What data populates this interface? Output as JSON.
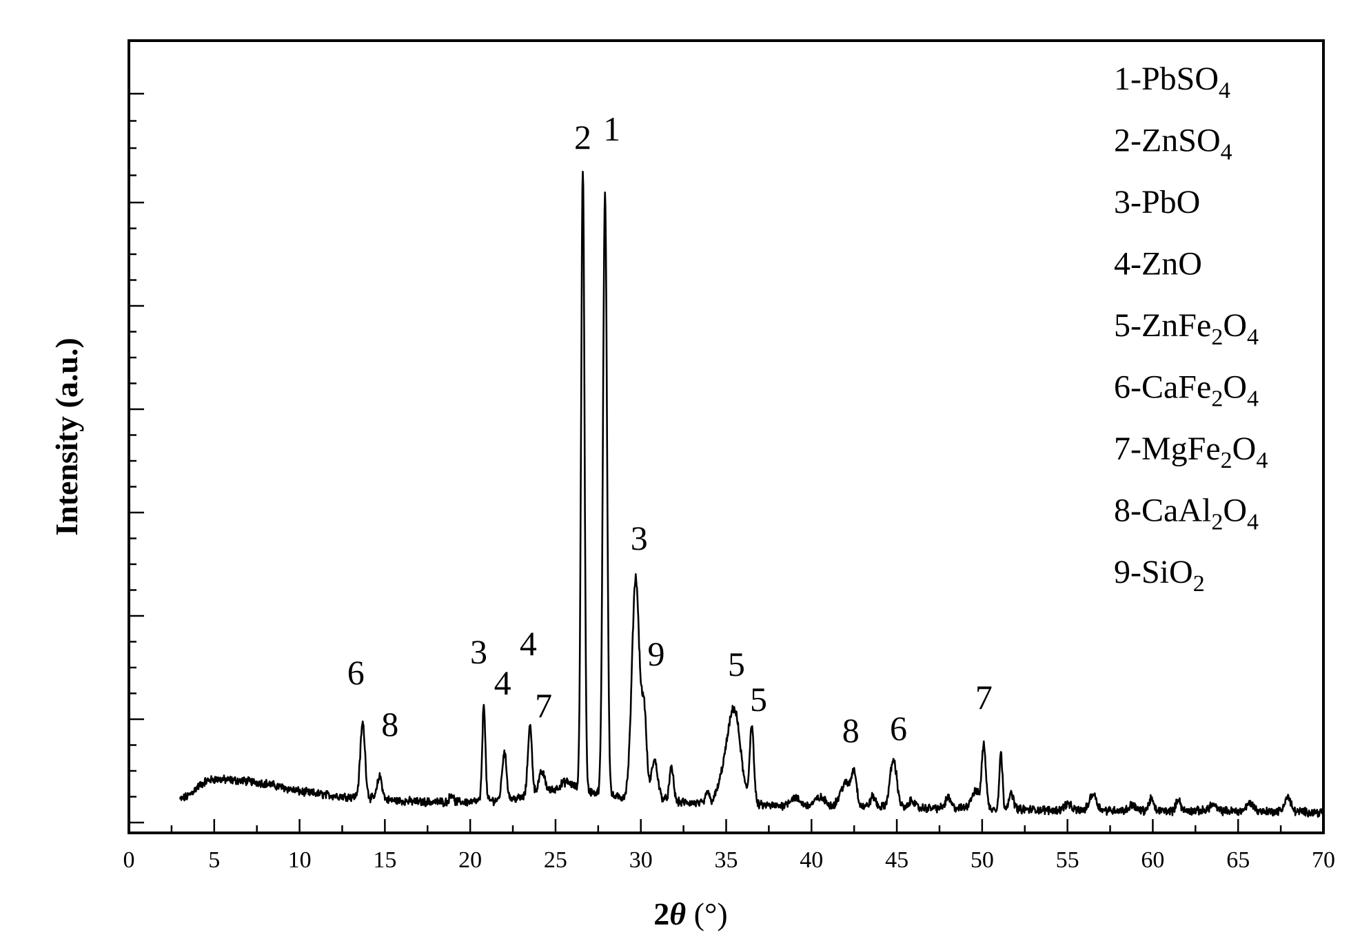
{
  "chart_data": {
    "type": "line",
    "xlabel": {
      "main": "2",
      "italic": "θ",
      "unit": " (°)"
    },
    "ylabel": "Intensity (a.u.)",
    "xlim": [
      0,
      70
    ],
    "x_ticks": [
      0,
      5,
      10,
      15,
      20,
      25,
      30,
      35,
      40,
      45,
      50,
      55,
      60,
      65,
      70
    ],
    "y_tick_labels": "none",
    "grid": false,
    "legend_placement": "top-right",
    "legend": [
      {
        "prefix": "1-PbSO",
        "parts": [
          {
            "t": "4",
            "sub": true
          }
        ]
      },
      {
        "prefix": "2-ZnSO",
        "parts": [
          {
            "t": "4",
            "sub": true
          }
        ]
      },
      {
        "prefix": "3-PbO",
        "parts": []
      },
      {
        "prefix": "4-ZnO",
        "parts": []
      },
      {
        "prefix": "5-ZnFe",
        "parts": [
          {
            "t": "2",
            "sub": true
          },
          {
            "t": "O",
            "sub": false
          },
          {
            "t": "4",
            "sub": true
          }
        ]
      },
      {
        "prefix": "6-CaFe",
        "parts": [
          {
            "t": "2",
            "sub": true
          },
          {
            "t": "O",
            "sub": false
          },
          {
            "t": "4",
            "sub": true
          }
        ]
      },
      {
        "prefix": "7-MgFe",
        "parts": [
          {
            "t": "2",
            "sub": true
          },
          {
            "t": "O",
            "sub": false
          },
          {
            "t": "4",
            "sub": true
          }
        ]
      },
      {
        "prefix": "8-CaAl",
        "parts": [
          {
            "t": "2",
            "sub": true
          },
          {
            "t": "O",
            "sub": false
          },
          {
            "t": "4",
            "sub": true
          }
        ]
      },
      {
        "prefix": "9-SiO",
        "parts": [
          {
            "t": "2",
            "sub": true
          }
        ]
      }
    ],
    "baseline_profile": [
      [
        3.0,
        8
      ],
      [
        3.5,
        10
      ],
      [
        4.0,
        14
      ],
      [
        4.5,
        17
      ],
      [
        5.0,
        18
      ],
      [
        6.0,
        17.5
      ],
      [
        7.0,
        17
      ],
      [
        8.0,
        16
      ],
      [
        9.0,
        14
      ],
      [
        10.0,
        12
      ],
      [
        11.0,
        11
      ],
      [
        12.0,
        10
      ],
      [
        13.0,
        9.5
      ],
      [
        14.0,
        9
      ],
      [
        15.0,
        8
      ],
      [
        16.0,
        7.5
      ],
      [
        17.0,
        7
      ],
      [
        18.0,
        7
      ],
      [
        19.0,
        7
      ],
      [
        20.0,
        7
      ],
      [
        21.0,
        7.5
      ],
      [
        22.0,
        8
      ],
      [
        23.0,
        9
      ],
      [
        24.0,
        11
      ],
      [
        25.0,
        13
      ],
      [
        26.0,
        14
      ],
      [
        27.0,
        12
      ],
      [
        28.0,
        10
      ],
      [
        29.0,
        9
      ],
      [
        30.0,
        10
      ],
      [
        31.0,
        9
      ],
      [
        32.0,
        7
      ],
      [
        33.0,
        6.5
      ],
      [
        34.0,
        6
      ],
      [
        35.0,
        7
      ],
      [
        36.0,
        6.5
      ],
      [
        37.0,
        5.5
      ],
      [
        38.0,
        5
      ],
      [
        40.0,
        5
      ],
      [
        42.0,
        5
      ],
      [
        44.0,
        4.5
      ],
      [
        46.0,
        4
      ],
      [
        48.0,
        4
      ],
      [
        50.0,
        4
      ],
      [
        52.0,
        3.5
      ],
      [
        54.0,
        3
      ],
      [
        56.0,
        3
      ],
      [
        58.0,
        3
      ],
      [
        60.0,
        2.8
      ],
      [
        62.0,
        2.7
      ],
      [
        64.0,
        2.6
      ],
      [
        66.0,
        2.5
      ],
      [
        68.0,
        2.3
      ],
      [
        70.0,
        2
      ]
    ],
    "peaks": [
      {
        "x": 13.7,
        "h": 36,
        "w": 0.14
      },
      {
        "x": 14.7,
        "h": 11,
        "w": 0.14
      },
      {
        "x": 18.9,
        "h": 4,
        "w": 0.1
      },
      {
        "x": 20.8,
        "h": 47,
        "w": 0.09
      },
      {
        "x": 22.0,
        "h": 23,
        "w": 0.13
      },
      {
        "x": 23.5,
        "h": 34,
        "w": 0.12
      },
      {
        "x": 24.2,
        "h": 10,
        "w": 0.18
      },
      {
        "x": 25.6,
        "h": 3,
        "w": 0.3
      },
      {
        "x": 26.6,
        "h": 301,
        "w": 0.1
      },
      {
        "x": 27.9,
        "h": 291,
        "w": 0.12
      },
      {
        "x": 29.7,
        "h": 106,
        "w": 0.22
      },
      {
        "x": 30.2,
        "h": 38,
        "w": 0.14
      },
      {
        "x": 30.8,
        "h": 18,
        "w": 0.18
      },
      {
        "x": 31.8,
        "h": 16,
        "w": 0.12
      },
      {
        "x": 33.9,
        "h": 6,
        "w": 0.1
      },
      {
        "x": 34.9,
        "h": 13,
        "w": 0.35
      },
      {
        "x": 35.5,
        "h": 42,
        "w": 0.35
      },
      {
        "x": 36.5,
        "h": 38,
        "w": 0.12
      },
      {
        "x": 39.0,
        "h": 4,
        "w": 0.3
      },
      {
        "x": 40.5,
        "h": 4,
        "w": 0.3
      },
      {
        "x": 42.0,
        "h": 11,
        "w": 0.3
      },
      {
        "x": 42.5,
        "h": 15,
        "w": 0.15
      },
      {
        "x": 43.6,
        "h": 5,
        "w": 0.15
      },
      {
        "x": 44.8,
        "h": 23,
        "w": 0.2
      },
      {
        "x": 45.9,
        "h": 4,
        "w": 0.15
      },
      {
        "x": 48.0,
        "h": 5,
        "w": 0.15
      },
      {
        "x": 49.6,
        "h": 8,
        "w": 0.25
      },
      {
        "x": 50.1,
        "h": 30,
        "w": 0.12
      },
      {
        "x": 51.1,
        "h": 27,
        "w": 0.09
      },
      {
        "x": 51.7,
        "h": 7,
        "w": 0.15
      },
      {
        "x": 55.0,
        "h": 3,
        "w": 0.2
      },
      {
        "x": 56.5,
        "h": 8,
        "w": 0.2
      },
      {
        "x": 58.8,
        "h": 3,
        "w": 0.15
      },
      {
        "x": 59.9,
        "h": 6,
        "w": 0.12
      },
      {
        "x": 61.5,
        "h": 6,
        "w": 0.12
      },
      {
        "x": 63.5,
        "h": 3,
        "w": 0.2
      },
      {
        "x": 65.7,
        "h": 4,
        "w": 0.2
      },
      {
        "x": 67.9,
        "h": 7,
        "w": 0.18
      }
    ],
    "noise_amplitude": 1.6,
    "peak_labels": [
      {
        "text": "6",
        "x": 13.3,
        "y": 64
      },
      {
        "text": "8",
        "x": 15.3,
        "y": 39
      },
      {
        "text": "3",
        "x": 20.5,
        "y": 74
      },
      {
        "text": "4",
        "x": 21.9,
        "y": 59
      },
      {
        "text": "4",
        "x": 23.4,
        "y": 78
      },
      {
        "text": "7",
        "x": 24.3,
        "y": 48
      },
      {
        "text": "2",
        "x": 26.6,
        "y": 323
      },
      {
        "text": "1",
        "x": 28.3,
        "y": 327
      },
      {
        "text": "3",
        "x": 29.9,
        "y": 129
      },
      {
        "text": "9",
        "x": 30.9,
        "y": 73
      },
      {
        "text": "5",
        "x": 35.6,
        "y": 68
      },
      {
        "text": "5",
        "x": 36.9,
        "y": 51
      },
      {
        "text": "8",
        "x": 42.3,
        "y": 36
      },
      {
        "text": "6",
        "x": 45.1,
        "y": 37
      },
      {
        "text": "7",
        "x": 50.1,
        "y": 52
      }
    ]
  }
}
